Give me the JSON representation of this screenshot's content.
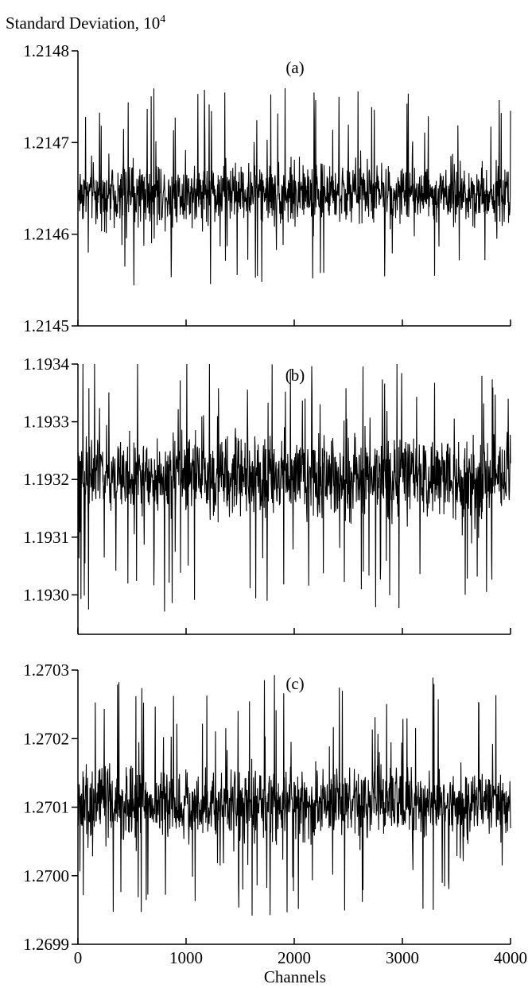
{
  "chart_data": {
    "type": "line",
    "ylabel_base": "Standard Deviation, 10",
    "ylabel_exp": "4",
    "xlabel": "Channels",
    "xlim": [
      0,
      4000
    ],
    "xticks": [
      0,
      1000,
      2000,
      3000,
      4000
    ],
    "xtick_labels": [
      "0",
      "1000",
      "2000",
      "3000",
      "4000"
    ],
    "grid": false,
    "panels": [
      {
        "label": "(a)",
        "ylim": [
          1.2145,
          1.2148
        ],
        "yticks": [
          1.2145,
          1.2146,
          1.2147,
          1.2148
        ],
        "ytick_labels": [
          "1.2145",
          "1.2146",
          "1.2147",
          "1.2148"
        ],
        "n_points": 1300,
        "mean": 1.21645,
        "band_low": 1.2146,
        "band_high": 1.21469,
        "peak_max": 1.21476,
        "trough_min": 1.21454
      },
      {
        "label": "(b)",
        "ylim": [
          1.1929,
          1.1934
        ],
        "yticks": [
          1.193,
          1.1931,
          1.1932,
          1.1933,
          1.1934
        ],
        "ytick_labels": [
          "1.1930",
          "1.1931",
          "1.1932",
          "1.1933",
          "1.1934"
        ],
        "n_points": 1300,
        "mean": 1.19319,
        "band_low": 1.19311,
        "band_high": 1.1933,
        "peak_max": 1.19342,
        "trough_min": 1.19297
      },
      {
        "label": "(c)",
        "ylim": [
          1.2699,
          1.2703
        ],
        "yticks": [
          1.2699,
          1.27,
          1.2701,
          1.2702,
          1.2703
        ],
        "ytick_labels": [
          "1.2699",
          "1.2700",
          "1.2701",
          "1.2702",
          "1.2703"
        ],
        "n_points": 1300,
        "mean": 1.2701,
        "band_low": 1.27003,
        "band_high": 1.27018,
        "peak_max": 1.2703,
        "trough_min": 1.26994
      }
    ]
  }
}
